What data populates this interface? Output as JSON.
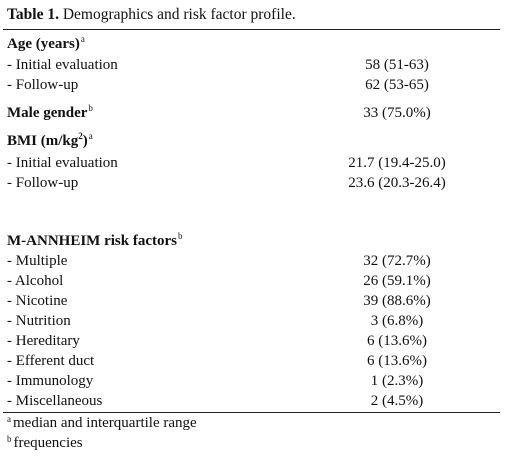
{
  "table": {
    "title_bold": "Table 1.",
    "title_rest": " Demographics and risk factor profile.",
    "age": {
      "label": "Age (years)",
      "sup": "a",
      "initial_label": "- Initial evaluation",
      "initial_value": "58 (51-63)",
      "followup_label": "- Follow-up",
      "followup_value": "62 (53-65)"
    },
    "male": {
      "label": "Male gender",
      "sup": "b",
      "value": "33 (75.0%)"
    },
    "bmi": {
      "label_pre": "BMI (m/kg",
      "label_exp": "2",
      "label_post": ")",
      "sup": "a",
      "initial_label": "- Initial evaluation",
      "initial_value": "21.7 (19.4-25.0)",
      "followup_label": "- Follow-up",
      "followup_value": "23.6 (20.3-26.4)"
    },
    "risk": {
      "label": "M-ANNHEIM risk factors",
      "sup": "b",
      "items": [
        {
          "label": "- Multiple",
          "value": "32 (72.7%)"
        },
        {
          "label": "- Alcohol",
          "value": "26 (59.1%)"
        },
        {
          "label": "- Nicotine",
          "value": "39 (88.6%)"
        },
        {
          "label": "- Nutrition",
          "value": "3 (6.8%)"
        },
        {
          "label": "- Hereditary",
          "value": "6 (13.6%)"
        },
        {
          "label": "- Efferent duct",
          "value": "6 (13.6%)"
        },
        {
          "label": "- Immunology",
          "value": "1 (2.3%)"
        },
        {
          "label": "- Miscellaneous",
          "value": "2 (4.5%)"
        }
      ]
    },
    "footnotes": [
      {
        "mark": "a",
        "text": "median and interquartile range"
      },
      {
        "mark": "b",
        "text": "frequencies"
      }
    ]
  }
}
